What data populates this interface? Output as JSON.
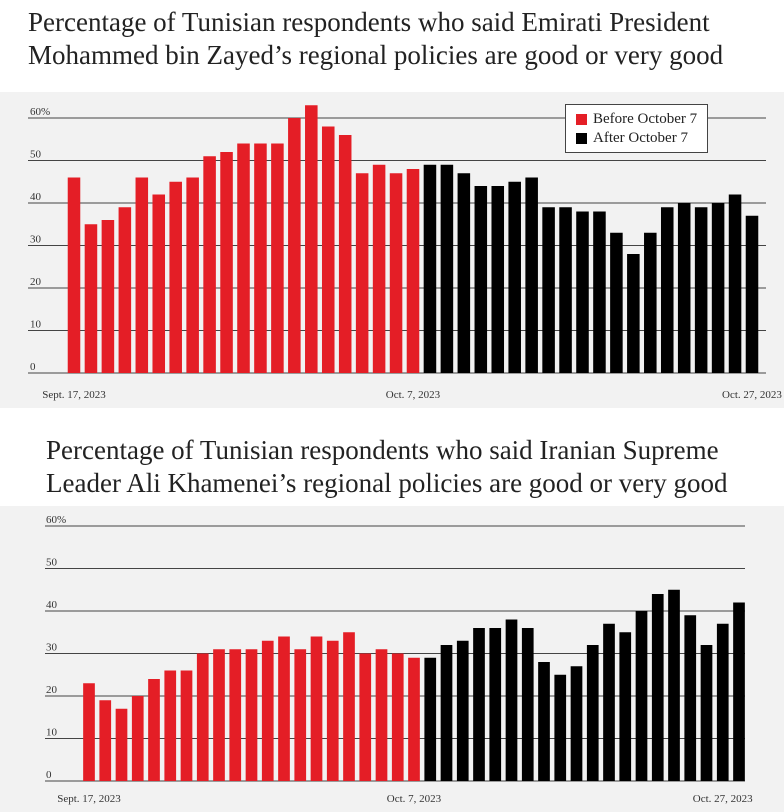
{
  "colors": {
    "before": "#e41e26",
    "after": "#000000",
    "grid": "#444444",
    "plot_bg": "#f2f2f2"
  },
  "legend": {
    "before_label": "Before October 7",
    "after_label": "After October 7"
  },
  "chart_data": [
    {
      "type": "bar",
      "title_lines": [
        "Percentage of Tunisian respondents who said Emirati President",
        "Mohammed bin Zayed’s regional policies are good or very good"
      ],
      "ylim": [
        0,
        60
      ],
      "y_ticks": [
        "0",
        "10",
        "20",
        "30",
        "40",
        "50",
        "60%"
      ],
      "x_tick_labels": [
        {
          "label": "Sept. 17, 2023",
          "index": 0
        },
        {
          "label": "Oct. 7, 2023",
          "index": 20
        },
        {
          "label": "Oct. 27, 2023",
          "index": 40
        }
      ],
      "legend": "top-right",
      "series": [
        {
          "name": "Before October 7",
          "color": "#e41e26",
          "values": [
            46,
            35,
            36,
            39,
            46,
            42,
            45,
            46,
            51,
            52,
            54,
            54,
            54,
            60,
            63,
            58,
            56,
            47,
            49,
            47,
            48
          ]
        },
        {
          "name": "After October 7",
          "color": "#000000",
          "values": [
            49,
            49,
            47,
            44,
            44,
            45,
            46,
            39,
            39,
            38,
            38,
            33,
            28,
            33,
            39,
            40,
            39,
            40,
            42,
            37
          ]
        }
      ]
    },
    {
      "type": "bar",
      "title_lines": [
        "Percentage of Tunisian respondents who said Iranian Supreme",
        "Leader Ali Khamenei’s regional policies are good or very good"
      ],
      "ylim": [
        0,
        60
      ],
      "y_ticks": [
        "0",
        "10",
        "20",
        "30",
        "40",
        "50",
        "60%"
      ],
      "x_tick_labels": [
        {
          "label": "Sept. 17, 2023",
          "index": 0
        },
        {
          "label": "Oct. 7, 2023",
          "index": 20
        },
        {
          "label": "Oct. 27, 2023",
          "index": 39
        }
      ],
      "legend": "none",
      "series": [
        {
          "name": "Before October 7",
          "color": "#e41e26",
          "values": [
            23,
            19,
            17,
            20,
            24,
            26,
            26,
            30,
            31,
            31,
            31,
            33,
            34,
            31,
            34,
            33,
            35,
            30,
            31,
            30,
            29
          ]
        },
        {
          "name": "After October 7",
          "color": "#000000",
          "values": [
            29,
            32,
            33,
            36,
            36,
            38,
            36,
            28,
            25,
            27,
            32,
            37,
            35,
            40,
            44,
            45,
            39,
            32,
            37,
            42
          ]
        }
      ]
    }
  ]
}
